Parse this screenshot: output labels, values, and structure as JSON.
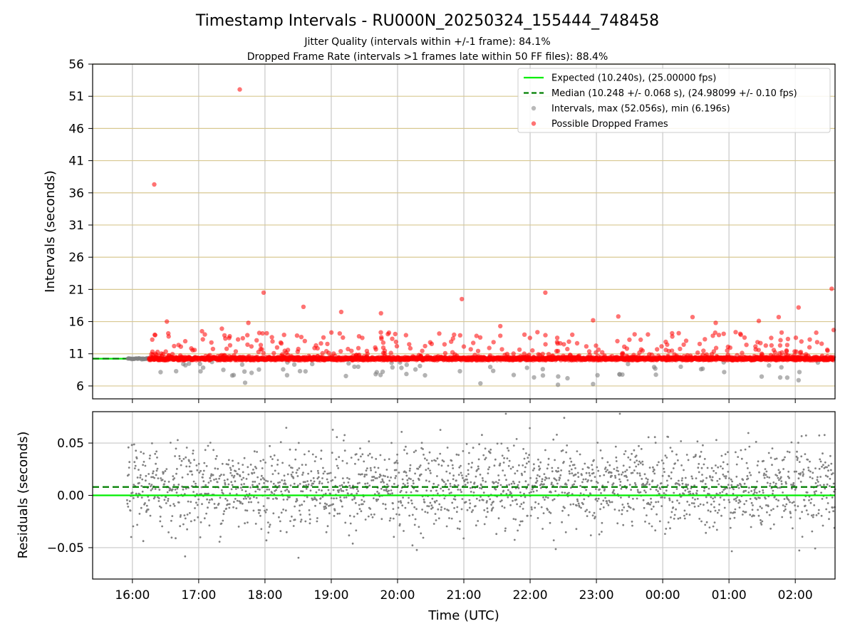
{
  "chart_data": {
    "type": "scatter",
    "title": "Timestamp Intervals - RU000N_20250324_155444_748458",
    "subtitle_1": "Jitter Quality (intervals within +/-1 frame): 84.1%",
    "subtitle_2": "Dropped Frame Rate (intervals >1 frames late within 50 FF files): 88.4%",
    "xlabel": "Time (UTC)",
    "x_tick_labels": [
      "16:00",
      "17:00",
      "18:00",
      "19:00",
      "20:00",
      "21:00",
      "22:00",
      "23:00",
      "00:00",
      "01:00",
      "02:00"
    ],
    "xlim_hours": [
      15.4,
      26.6
    ],
    "top_panel": {
      "ylabel": "Intervals (seconds)",
      "ylim": [
        4,
        56
      ],
      "y_ticks": [
        6,
        11,
        16,
        21,
        26,
        31,
        36,
        41,
        46,
        51,
        56
      ],
      "expected_interval": 10.24,
      "median_interval": 10.248,
      "max_interval": 52.056,
      "min_interval": 6.196,
      "legend": {
        "position": "top-right",
        "entries": [
          {
            "label": "Expected (10.240s), (25.00000 fps)",
            "kind": "line",
            "color": "#00ee00",
            "dash": false
          },
          {
            "label": "Median (10.248 +/- 0.068 s), (24.98099 +/- 0.10 fps)",
            "kind": "line",
            "color": "#007f00",
            "dash": true
          },
          {
            "label": "Intervals, max (52.056s), min (6.196s)",
            "kind": "marker",
            "color": "#808080"
          },
          {
            "label": "Possible Dropped Frames",
            "kind": "marker",
            "color": "#ff0000"
          }
        ]
      },
      "dropped_frames_notable": [
        {
          "x": 16.3,
          "y": 13.2
        },
        {
          "x": 16.33,
          "y": 37.3
        },
        {
          "x": 16.52,
          "y": 16.0
        },
        {
          "x": 17.05,
          "y": 14.5
        },
        {
          "x": 17.35,
          "y": 14.9
        },
        {
          "x": 17.62,
          "y": 52.056
        },
        {
          "x": 17.75,
          "y": 15.8
        },
        {
          "x": 17.98,
          "y": 20.5
        },
        {
          "x": 18.58,
          "y": 18.3
        },
        {
          "x": 19.15,
          "y": 17.5
        },
        {
          "x": 19.75,
          "y": 17.3
        },
        {
          "x": 20.97,
          "y": 19.5
        },
        {
          "x": 21.55,
          "y": 15.3
        },
        {
          "x": 22.23,
          "y": 20.5
        },
        {
          "x": 22.95,
          "y": 16.2
        },
        {
          "x": 23.33,
          "y": 16.8
        },
        {
          "x": 24.45,
          "y": 16.7
        },
        {
          "x": 24.8,
          "y": 15.8
        },
        {
          "x": 25.45,
          "y": 16.1
        },
        {
          "x": 25.75,
          "y": 16.7
        },
        {
          "x": 26.05,
          "y": 18.2
        },
        {
          "x": 26.55,
          "y": 21.1
        },
        {
          "x": 26.58,
          "y": 14.7
        }
      ],
      "low_intervals_notable": [
        {
          "x": 17.7,
          "y": 6.5
        },
        {
          "x": 21.25,
          "y": 6.4
        },
        {
          "x": 22.42,
          "y": 6.196
        },
        {
          "x": 22.95,
          "y": 6.3
        },
        {
          "x": 26.05,
          "y": 6.9
        }
      ]
    },
    "bottom_panel": {
      "ylabel": "Residuals (seconds)",
      "ylim": [
        -0.08,
        0.08
      ],
      "y_tick_labels": [
        "−0.05",
        "0.00",
        "0.05"
      ],
      "y_ticks": [
        -0.05,
        0.0,
        0.05
      ],
      "expected_line": 0.0,
      "median_line": 0.008,
      "residual_spread_sd": 0.02,
      "point_color": "#808080"
    },
    "grid": true,
    "colors": {
      "expected": "#00ee00",
      "median": "#007f00",
      "intervals": "#808080",
      "dropped": "#ff0000",
      "hgrid_top": "#d8c890",
      "grid": "#c8c8c8"
    }
  }
}
